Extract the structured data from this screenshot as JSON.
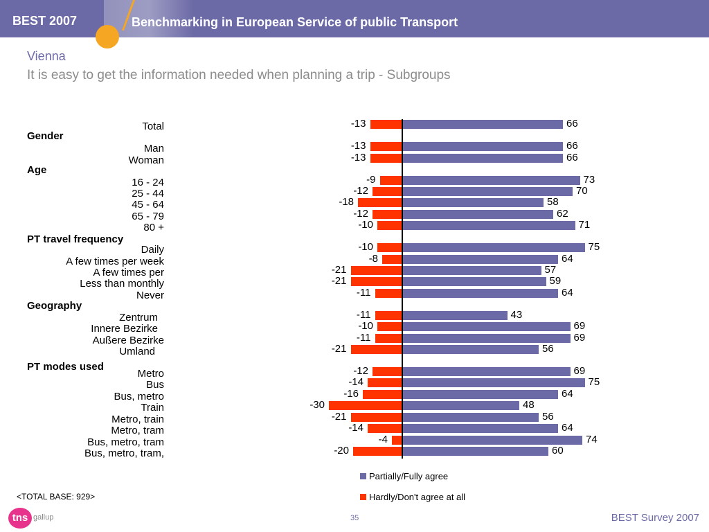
{
  "header": {
    "brand": "BEST 2007",
    "title": "Benchmarking in European Service of public Transport"
  },
  "title": "Vienna",
  "subtitle": "It is easy to get the information needed when planning a trip - Subgroups",
  "chart_data": {
    "type": "bar",
    "orientation": "horizontal",
    "diverging": true,
    "grid": false,
    "groups": [
      "Gender",
      "Age",
      "PT travel frequency",
      "Geography",
      "PT modes used"
    ],
    "categories": [
      "Total",
      "Man",
      "Woman",
      "16 - 24",
      "25 - 44",
      "45 - 64",
      "65 - 79",
      "80 +",
      "Daily",
      "A few times per week",
      "A few times per",
      "Less than monthly",
      "Never",
      "Zentrum",
      "Innere Bezirke",
      "Außere Bezirke",
      "Umland",
      "Metro",
      "Bus",
      "Bus, metro",
      "Train",
      "Metro, train",
      "Metro, tram",
      "Bus, metro, tram",
      "Bus, metro, tram,"
    ],
    "category_groups": [
      "",
      "Gender",
      "Gender",
      "Age",
      "Age",
      "Age",
      "Age",
      "Age",
      "PT travel frequency",
      "PT travel frequency",
      "PT travel frequency",
      "PT travel frequency",
      "PT travel frequency",
      "Geography",
      "Geography",
      "Geography",
      "Geography",
      "PT modes used",
      "PT modes used",
      "PT modes used",
      "PT modes used",
      "PT modes used",
      "PT modes used",
      "PT modes used",
      "PT modes used"
    ],
    "series": [
      {
        "name": "Partially/Fully agree",
        "color": "#6c6aa6",
        "values": [
          66,
          66,
          66,
          73,
          70,
          58,
          62,
          71,
          75,
          64,
          57,
          59,
          64,
          43,
          69,
          69,
          56,
          69,
          75,
          64,
          48,
          56,
          64,
          74,
          60
        ]
      },
      {
        "name": "Hardly/Don't agree at all",
        "color": "#ff3300",
        "values": [
          -13,
          -13,
          -13,
          -9,
          -12,
          -18,
          -12,
          -10,
          -10,
          -8,
          -21,
          -21,
          -11,
          -11,
          -10,
          -11,
          -21,
          -12,
          -14,
          -16,
          -30,
          -21,
          -14,
          -4,
          -20
        ]
      }
    ],
    "legend_position": "bottom"
  },
  "base_note": "<TOTAL BASE: 929>",
  "logo_sub": "gallup",
  "logo_mark": "tns",
  "page_number": "35",
  "footer": "BEST Survey 2007"
}
